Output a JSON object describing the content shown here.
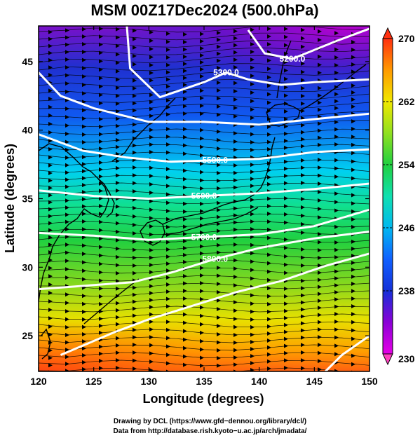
{
  "title": "MSM 00Z17Dec2024 (500.0hPa)",
  "xlabel": "Longitude (degrees)",
  "ylabel": "Latitude  (degrees)",
  "credits": {
    "line1": "Drawing by DCL (https://www.gfd−dennou.org/library/dcl/)",
    "line2": "Data from http://database.rish.kyoto−u.ac.jp/arch/jmadata/"
  },
  "chart_data": {
    "type": "heatmap",
    "x": {
      "label": "Longitude (degrees)",
      "range": [
        120,
        150
      ],
      "ticks": [
        120,
        125,
        130,
        135,
        140,
        145,
        150
      ],
      "tick_labels": [
        "120",
        "125",
        "130",
        "135",
        "140",
        "145",
        "150"
      ]
    },
    "y": {
      "label": "Latitude  (degrees)",
      "range": [
        22.4,
        47.6
      ],
      "ticks": [
        25,
        30,
        35,
        40,
        45
      ],
      "tick_labels": [
        "25",
        "30",
        "35",
        "40",
        "45"
      ]
    },
    "colorbar": {
      "range": [
        230,
        270
      ],
      "ticks": [
        230,
        238,
        246,
        254,
        262,
        270
      ],
      "tick_labels": [
        "230",
        "238",
        "246",
        "254",
        "262",
        "270"
      ]
    },
    "contours": [
      {
        "value": 5200,
        "label": "5200.0",
        "points": [
          [
            139.0,
            47.3
          ],
          [
            140.5,
            45.6
          ],
          [
            143,
            45.2
          ],
          [
            147,
            46.5
          ],
          [
            150,
            47.4
          ]
        ]
      },
      {
        "value": 5300,
        "label": "5300.0",
        "points": [
          [
            128,
            47.6
          ],
          [
            128.3,
            44.5
          ],
          [
            131,
            42.4
          ],
          [
            135,
            43.5
          ],
          [
            137,
            44.2
          ],
          [
            139,
            43.7
          ],
          [
            142,
            43.3
          ],
          [
            145,
            43.5
          ],
          [
            150,
            43.7
          ]
        ]
      },
      {
        "value": 5400,
        "label": "",
        "points": [
          [
            120,
            44.2
          ],
          [
            122,
            42.5
          ],
          [
            125,
            41.6
          ],
          [
            130,
            40.6
          ],
          [
            135,
            40.6
          ],
          [
            140,
            40.4
          ],
          [
            145,
            40.8
          ],
          [
            150,
            41.2
          ]
        ]
      },
      {
        "value": 5500,
        "label": "5500.0",
        "points": [
          [
            120,
            39.7
          ],
          [
            124,
            38.5
          ],
          [
            128,
            38.0
          ],
          [
            132,
            37.7
          ],
          [
            136,
            37.8
          ],
          [
            140,
            37.9
          ],
          [
            145,
            38.4
          ],
          [
            150,
            38.6
          ]
        ]
      },
      {
        "value": 5600,
        "label": "5600.0",
        "points": [
          [
            120,
            35.6
          ],
          [
            125,
            35.2
          ],
          [
            130,
            35.0
          ],
          [
            135,
            35.2
          ],
          [
            140,
            35.4
          ],
          [
            145,
            35.7
          ],
          [
            150,
            36.1
          ]
        ]
      },
      {
        "value": 5700,
        "label": "5700.0",
        "points": [
          [
            120,
            32.5
          ],
          [
            125,
            32.3
          ],
          [
            130,
            32.0
          ],
          [
            135,
            32.2
          ],
          [
            140,
            32.4
          ],
          [
            145,
            33.0
          ],
          [
            150,
            34.2
          ]
        ]
      },
      {
        "value": 5800,
        "label": "5800.0",
        "points": [
          [
            120,
            28.4
          ],
          [
            125,
            28.7
          ],
          [
            128.5,
            28.9
          ],
          [
            132,
            29.6
          ],
          [
            136,
            30.6
          ],
          [
            140,
            31.4
          ],
          [
            145,
            32.1
          ],
          [
            150,
            32.6
          ]
        ]
      },
      {
        "value": 5900,
        "label": "",
        "points": [
          [
            122,
            23.6
          ],
          [
            127,
            25.3
          ],
          [
            130,
            26.2
          ],
          [
            134,
            27.2
          ],
          [
            138,
            28.2
          ],
          [
            142,
            29.0
          ],
          [
            146,
            30.1
          ],
          [
            150,
            31.0
          ]
        ]
      },
      {
        "value": 5900,
        "label": "",
        "points": [
          [
            146,
            22.4
          ],
          [
            147.5,
            23.6
          ],
          [
            150,
            25.0
          ]
        ]
      }
    ]
  }
}
